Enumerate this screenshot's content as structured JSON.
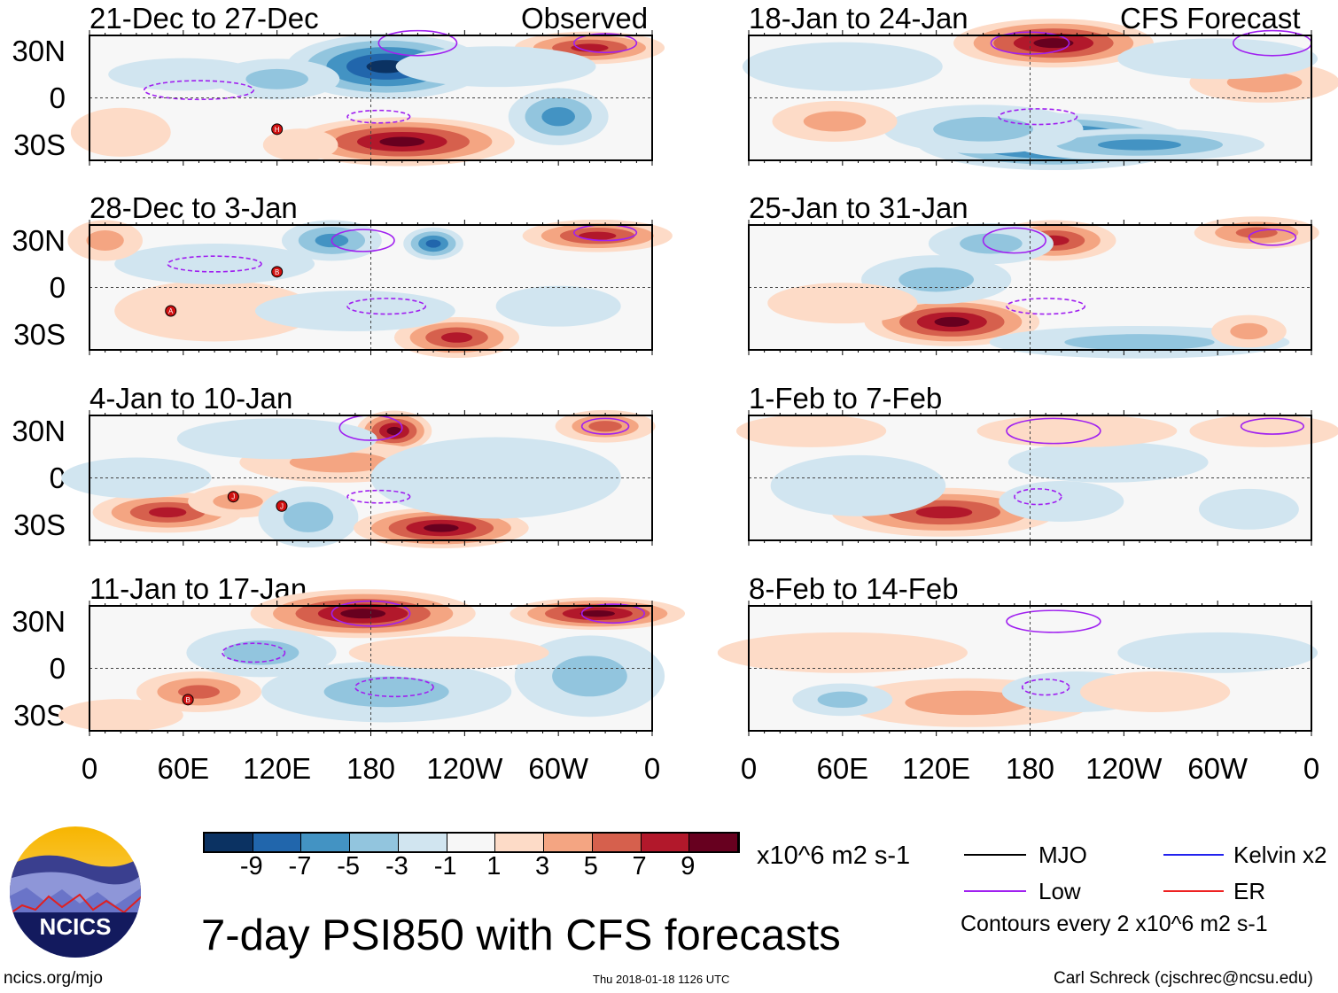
{
  "header": {
    "left_label": "Observed",
    "right_label": "CFS Forecast"
  },
  "lat_ticks": [
    "30N",
    "0",
    "30S"
  ],
  "lon_ticks": [
    "0",
    "60E",
    "120E",
    "180",
    "120W",
    "60W",
    "0"
  ],
  "chart_data": {
    "type": "heatmap",
    "title": "7-day PSI850 with CFS forecasts",
    "variable": "PSI850 anomaly",
    "units": "x10^6 m2 s-1",
    "xlim": [
      0,
      360
    ],
    "ylim": [
      -40,
      40
    ],
    "levels": [
      -11,
      -9,
      -7,
      -5,
      -3,
      -1,
      1,
      3,
      5,
      7,
      9,
      11
    ],
    "colorbar_labels": [
      "-9",
      "-7",
      "-5",
      "-3",
      "-1",
      "1",
      "3",
      "5",
      "7",
      "9"
    ],
    "colors": [
      "#0b3262",
      "#2166ac",
      "#4393c3",
      "#92c5de",
      "#d1e5f0",
      "#f7f7f7",
      "#fddbc7",
      "#f4a582",
      "#d6604d",
      "#b2182b",
      "#67001f"
    ],
    "panels": [
      {
        "title": "21-Dec to 27-Dec",
        "source": "Observed",
        "blobs": [
          [
            190,
            20,
            40,
            16,
            -10
          ],
          [
            200,
            -28,
            45,
            12,
            11
          ],
          [
            60,
            15,
            30,
            8,
            -3
          ],
          [
            120,
            12,
            25,
            10,
            -4
          ],
          [
            300,
            -12,
            20,
            14,
            -6
          ],
          [
            320,
            32,
            30,
            8,
            9
          ],
          [
            20,
            -22,
            20,
            12,
            3
          ],
          [
            135,
            -30,
            15,
            8,
            3
          ],
          [
            260,
            20,
            40,
            10,
            -3
          ]
        ],
        "lows": [
          [
            185,
            -12,
            20,
            4,
            -1
          ],
          [
            70,
            5,
            35,
            6,
            -1
          ],
          [
            210,
            35,
            25,
            8,
            1
          ],
          [
            330,
            35,
            20,
            6,
            1
          ]
        ],
        "markers": [
          [
            120,
            -20,
            "H"
          ]
        ]
      },
      {
        "title": "28-Dec to 3-Jan",
        "source": "Observed",
        "blobs": [
          [
            155,
            30,
            20,
            10,
            -6
          ],
          [
            220,
            28,
            12,
            8,
            -9
          ],
          [
            235,
            -32,
            25,
            10,
            9
          ],
          [
            325,
            33,
            30,
            8,
            8
          ],
          [
            80,
            -15,
            40,
            15,
            3
          ],
          [
            170,
            -15,
            40,
            10,
            -3
          ],
          [
            80,
            15,
            40,
            10,
            -3
          ],
          [
            300,
            -12,
            25,
            10,
            -3
          ],
          [
            10,
            30,
            15,
            10,
            4
          ]
        ],
        "lows": [
          [
            190,
            -12,
            25,
            5,
            -1
          ],
          [
            80,
            15,
            30,
            5,
            -1
          ],
          [
            175,
            30,
            20,
            7,
            1
          ],
          [
            330,
            35,
            20,
            5,
            1
          ]
        ],
        "markers": [
          [
            120,
            10,
            "B"
          ],
          [
            52,
            -15,
            "A"
          ]
        ]
      },
      {
        "title": "4-Jan to 10-Jan",
        "source": "Observed",
        "blobs": [
          [
            195,
            30,
            15,
            10,
            10
          ],
          [
            50,
            -22,
            30,
            10,
            8
          ],
          [
            95,
            -15,
            20,
            8,
            5
          ],
          [
            140,
            -25,
            20,
            15,
            -5
          ],
          [
            225,
            -32,
            35,
            10,
            10
          ],
          [
            160,
            10,
            40,
            10,
            4
          ],
          [
            330,
            33,
            20,
            8,
            6
          ],
          [
            120,
            25,
            40,
            10,
            -3
          ],
          [
            260,
            0,
            50,
            20,
            -3
          ],
          [
            30,
            0,
            30,
            10,
            -3
          ]
        ],
        "lows": [
          [
            185,
            -12,
            20,
            4,
            -1
          ],
          [
            180,
            32,
            20,
            8,
            1
          ],
          [
            330,
            33,
            15,
            5,
            1
          ]
        ],
        "markers": [
          [
            92,
            -12,
            "J"
          ],
          [
            123,
            -18,
            "J"
          ]
        ]
      },
      {
        "title": "11-Jan to 17-Jan",
        "source": "Observed",
        "blobs": [
          [
            175,
            35,
            45,
            12,
            11
          ],
          [
            325,
            35,
            35,
            8,
            11
          ],
          [
            190,
            -15,
            50,
            15,
            -5
          ],
          [
            70,
            -15,
            25,
            10,
            6
          ],
          [
            320,
            -5,
            30,
            20,
            -4
          ],
          [
            110,
            10,
            30,
            12,
            -4
          ],
          [
            230,
            10,
            40,
            8,
            3
          ],
          [
            20,
            -30,
            25,
            8,
            3
          ]
        ],
        "lows": [
          [
            195,
            -12,
            25,
            6,
            -1
          ],
          [
            180,
            35,
            25,
            8,
            1
          ],
          [
            335,
            35,
            20,
            6,
            1
          ],
          [
            105,
            10,
            20,
            6,
            -1
          ]
        ],
        "markers": [
          [
            63,
            -20,
            "B"
          ]
        ]
      },
      {
        "title": "18-Jan to 24-Jan",
        "source": "CFS Forecast",
        "blobs": [
          [
            195,
            35,
            40,
            12,
            11
          ],
          [
            195,
            -28,
            55,
            14,
            -11
          ],
          [
            250,
            -30,
            50,
            8,
            -6
          ],
          [
            150,
            -20,
            40,
            12,
            -5
          ],
          [
            55,
            -15,
            25,
            10,
            5
          ],
          [
            330,
            10,
            30,
            10,
            4
          ],
          [
            300,
            25,
            40,
            10,
            -3
          ],
          [
            60,
            20,
            40,
            12,
            -3
          ]
        ],
        "lows": [
          [
            185,
            -12,
            25,
            5,
            -1
          ],
          [
            180,
            35,
            25,
            7,
            1
          ],
          [
            335,
            35,
            25,
            8,
            1
          ]
        ],
        "markers": []
      },
      {
        "title": "25-Jan to 31-Jan",
        "source": "CFS Forecast",
        "blobs": [
          [
            130,
            -22,
            35,
            12,
            10
          ],
          [
            195,
            30,
            25,
            10,
            8
          ],
          [
            325,
            35,
            25,
            8,
            7
          ],
          [
            155,
            28,
            25,
            10,
            -5
          ],
          [
            120,
            5,
            30,
            12,
            -4
          ],
          [
            250,
            -35,
            60,
            8,
            -5
          ],
          [
            60,
            -10,
            30,
            10,
            3
          ],
          [
            320,
            -28,
            15,
            8,
            4
          ]
        ],
        "lows": [
          [
            190,
            -12,
            25,
            5,
            -1
          ],
          [
            170,
            30,
            20,
            8,
            1
          ],
          [
            335,
            32,
            15,
            5,
            1
          ]
        ],
        "markers": []
      },
      {
        "title": "1-Feb to 7-Feb",
        "source": "CFS Forecast",
        "blobs": [
          [
            125,
            -22,
            45,
            12,
            8
          ],
          [
            70,
            -5,
            35,
            15,
            -3
          ],
          [
            200,
            -15,
            25,
            10,
            -3
          ],
          [
            230,
            10,
            40,
            10,
            -3
          ],
          [
            330,
            30,
            30,
            8,
            3
          ],
          [
            210,
            30,
            40,
            8,
            3
          ],
          [
            320,
            -20,
            20,
            10,
            -3
          ],
          [
            40,
            30,
            30,
            8,
            2
          ]
        ],
        "lows": [
          [
            185,
            -12,
            15,
            5,
            -1
          ],
          [
            195,
            30,
            30,
            8,
            1
          ],
          [
            335,
            33,
            20,
            5,
            1
          ]
        ],
        "markers": []
      },
      {
        "title": "8-Feb to 14-Feb",
        "source": "CFS Forecast",
        "blobs": [
          [
            140,
            -22,
            50,
            12,
            5
          ],
          [
            60,
            -20,
            20,
            8,
            -5
          ],
          [
            210,
            -15,
            30,
            10,
            -3
          ],
          [
            260,
            -15,
            30,
            10,
            3
          ],
          [
            300,
            10,
            40,
            10,
            -2
          ],
          [
            60,
            10,
            50,
            10,
            2
          ]
        ],
        "lows": [
          [
            190,
            -12,
            15,
            5,
            -1
          ],
          [
            195,
            30,
            30,
            7,
            1
          ]
        ],
        "markers": []
      }
    ]
  },
  "legend": {
    "units": "x10^6 m2 s-1",
    "items": [
      {
        "label": "MJO",
        "color": "#000000"
      },
      {
        "label": "Kelvin x2",
        "color": "#2222ee"
      },
      {
        "label": "Low",
        "color": "#a020f0"
      },
      {
        "label": "ER",
        "color": "#ee2222"
      }
    ],
    "contours_note": "Contours every 2 x10^6 m2 s-1"
  },
  "logo": {
    "text": "NCICS"
  },
  "footer": {
    "url": "ncics.org/mjo",
    "timestamp": "Thu 2018-01-18 1126 UTC",
    "author": "Carl Schreck (cjschrec@ncsu.edu)"
  }
}
